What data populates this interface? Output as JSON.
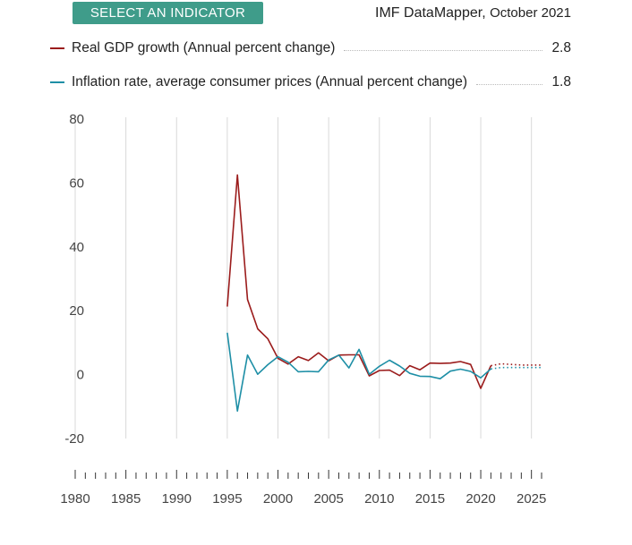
{
  "header": {
    "select_label": "SELECT AN INDICATOR",
    "source_name": "IMF DataMapper,",
    "source_date": "October 2021"
  },
  "legend": [
    {
      "name": "Real GDP growth (Annual percent change)",
      "value": "2.8",
      "color": "#9b1c1c"
    },
    {
      "name": "Inflation rate, average consumer prices (Annual percent change)",
      "value": "1.8",
      "color": "#1e8fa6"
    }
  ],
  "chart_data": {
    "type": "line",
    "xlim": [
      1980,
      2026
    ],
    "ylim": [
      -20,
      80
    ],
    "yticks": [
      80,
      60,
      40,
      20,
      0,
      -20
    ],
    "xticks": [
      1980,
      1985,
      1990,
      1995,
      2000,
      2005,
      2010,
      2015,
      2020,
      2025
    ],
    "grid": "vertical",
    "legend_position": "top",
    "series": [
      {
        "name": "Real GDP growth (Annual percent change)",
        "color": "#9b1c1c",
        "x": [
          1995,
          1996,
          1997,
          1998,
          1999,
          2000,
          2001,
          2002,
          2003,
          2004,
          2005,
          2006,
          2007,
          2008,
          2009,
          2010,
          2011,
          2012,
          2013,
          2014,
          2015,
          2016,
          2017,
          2018,
          2019,
          2020,
          2021
        ],
        "values": [
          21.3,
          62.5,
          23.5,
          14.3,
          11.2,
          5.1,
          3.3,
          5.6,
          4.4,
          6.8,
          4.3,
          6.1,
          6.2,
          6.2,
          -0.4,
          1.3,
          1.4,
          -0.3,
          2.8,
          1.5,
          3.6,
          3.5,
          3.6,
          4.1,
          3.2,
          -4.3,
          2.8
        ],
        "projection_x": [
          2021,
          2022,
          2023,
          2024,
          2025,
          2026
        ],
        "projection_values": [
          2.8,
          3.4,
          3.2,
          3.0,
          3.0,
          3.0
        ]
      },
      {
        "name": "Inflation rate, average consumer prices (Annual percent change)",
        "color": "#1e8fa6",
        "x": [
          1995,
          1996,
          1997,
          1998,
          1999,
          2000,
          2001,
          2002,
          2003,
          2004,
          2005,
          2006,
          2007,
          2008,
          2009,
          2010,
          2011,
          2012,
          2013,
          2014,
          2015,
          2016,
          2017,
          2018,
          2019,
          2020,
          2021
        ],
        "values": [
          13.1,
          -11.4,
          6.1,
          0.1,
          3.1,
          5.6,
          3.9,
          0.9,
          1.0,
          0.9,
          4.6,
          6.1,
          2.1,
          7.9,
          0.1,
          2.6,
          4.5,
          2.7,
          0.4,
          -0.5,
          -0.6,
          -1.3,
          1.1,
          1.7,
          1.0,
          -1.0,
          1.8
        ],
        "projection_x": [
          2021,
          2022,
          2023,
          2024,
          2025,
          2026
        ],
        "projection_values": [
          1.8,
          2.2,
          2.2,
          2.2,
          2.2,
          2.2
        ]
      }
    ]
  }
}
